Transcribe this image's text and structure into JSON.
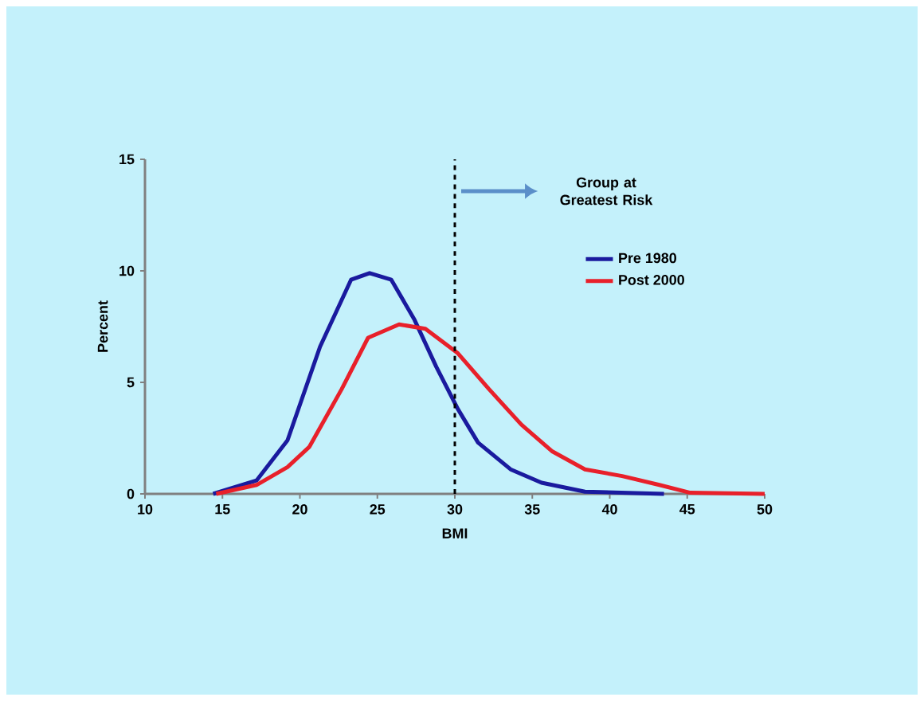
{
  "chart_data": {
    "type": "line",
    "xlabel": "BMI",
    "ylabel": "Percent",
    "xlim": [
      10,
      50
    ],
    "xticks": [
      10,
      15,
      20,
      25,
      30,
      35,
      40,
      45,
      50
    ],
    "ylim": [
      0,
      15
    ],
    "yticks": [
      0,
      5,
      10,
      15
    ],
    "grid": false,
    "legend": "right",
    "marker": "none",
    "line_style": "solid",
    "series": [
      {
        "name": "Pre 1980",
        "color": "#1a1a9e",
        "x": [
          14.4,
          17.2,
          19.2,
          21.3,
          23.3,
          24.5,
          25.9,
          27.4,
          28.8,
          30.2,
          31.5,
          33.6,
          35.6,
          38.4,
          43.5
        ],
        "values": [
          0,
          0.6,
          2.4,
          6.6,
          9.6,
          9.9,
          9.6,
          7.8,
          5.7,
          3.8,
          2.3,
          1.1,
          0.5,
          0.1,
          0
        ]
      },
      {
        "name": "Post 2000",
        "color": "#e8202a",
        "x": [
          14.6,
          17.2,
          19.2,
          20.6,
          22.7,
          24.4,
          26.4,
          28.1,
          30.2,
          32.2,
          34.3,
          36.3,
          38.4,
          40.8,
          43.2,
          45.2,
          50
        ],
        "values": [
          0,
          0.4,
          1.2,
          2.1,
          4.7,
          7.0,
          7.6,
          7.4,
          6.3,
          4.7,
          3.1,
          1.9,
          1.1,
          0.8,
          0.4,
          0.05,
          0
        ]
      }
    ],
    "ref_lines": [
      {
        "axis": "x",
        "value": 30,
        "color": "#000000",
        "line_style": "dashed"
      }
    ],
    "annotations": [
      "Group at Greatest Risk"
    ]
  }
}
